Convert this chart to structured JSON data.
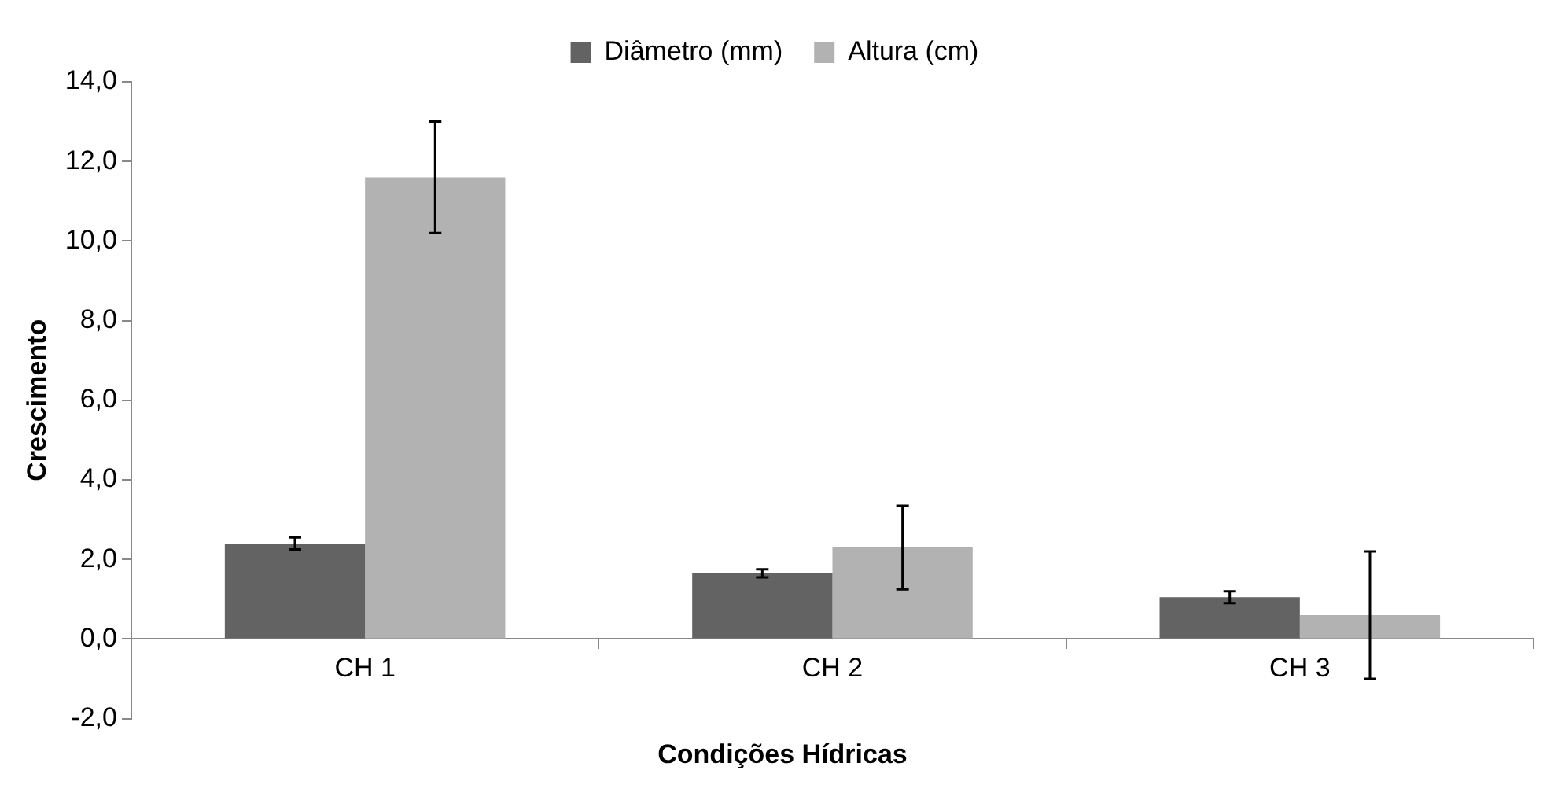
{
  "chart_data": {
    "type": "bar",
    "xlabel": "Condições Hídricas",
    "ylabel": "Crescimento",
    "categories": [
      "CH 1",
      "CH 2",
      "CH 3"
    ],
    "series": [
      {
        "name": "Diâmetro (mm)",
        "color": "#636363",
        "values": [
          2.4,
          1.65,
          1.05
        ],
        "errors": [
          0.15,
          0.1,
          0.15
        ]
      },
      {
        "name": "Altura (cm)",
        "color": "#b2b2b2",
        "values": [
          11.6,
          2.3,
          0.6
        ],
        "errors": [
          1.4,
          1.05,
          1.6
        ]
      }
    ],
    "ylim": [
      -2,
      14
    ],
    "yticks": [
      {
        "value": -2,
        "label": "-2,0"
      },
      {
        "value": 0,
        "label": "0,0"
      },
      {
        "value": 2,
        "label": "2,0"
      },
      {
        "value": 4,
        "label": "4,0"
      },
      {
        "value": 6,
        "label": "6,0"
      },
      {
        "value": 8,
        "label": "8,0"
      },
      {
        "value": 10,
        "label": "10,0"
      },
      {
        "value": 12,
        "label": "12,0"
      },
      {
        "value": 14,
        "label": "14,0"
      }
    ],
    "grid": false,
    "legend": "top"
  }
}
